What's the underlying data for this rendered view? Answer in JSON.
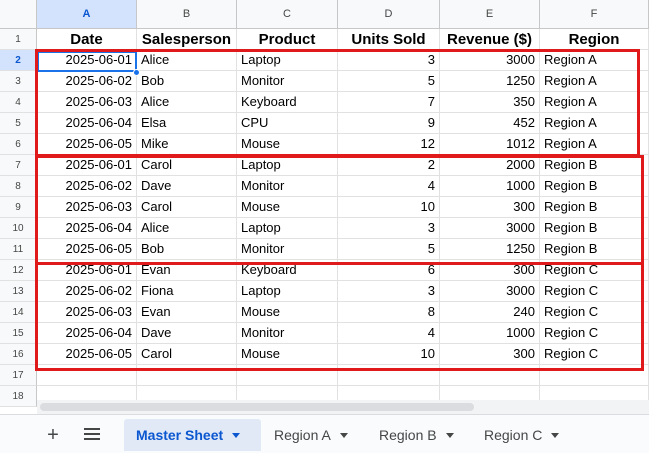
{
  "sheet": {
    "columns": [
      "A",
      "B",
      "C",
      "D",
      "E",
      "F"
    ],
    "selected_column": "A",
    "selected_row": "2",
    "row_numbers": [
      "1",
      "2",
      "3",
      "4",
      "5",
      "6",
      "7",
      "8",
      "9",
      "10",
      "11",
      "12",
      "13",
      "14",
      "15",
      "16",
      "17",
      "18"
    ],
    "headers": [
      "Date",
      "Salesperson",
      "Product",
      "Units Sold",
      "Revenue ($)",
      "Region"
    ],
    "rows": [
      [
        "2025-06-01",
        "Alice",
        "Laptop",
        "3",
        "3000",
        "Region A"
      ],
      [
        "2025-06-02",
        "Bob",
        "Monitor",
        "5",
        "1250",
        "Region A"
      ],
      [
        "2025-06-03",
        "Alice",
        "Keyboard",
        "7",
        "350",
        "Region A"
      ],
      [
        "2025-06-04",
        "Elsa",
        "CPU",
        "9",
        "452",
        "Region A"
      ],
      [
        "2025-06-05",
        "Mike",
        "Mouse",
        "12",
        "1012",
        "Region A"
      ],
      [
        "2025-06-01",
        "Carol",
        "Laptop",
        "2",
        "2000",
        "Region B"
      ],
      [
        "2025-06-02",
        "Dave",
        "Monitor",
        "4",
        "1000",
        "Region B"
      ],
      [
        "2025-06-03",
        "Carol",
        "Mouse",
        "10",
        "300",
        "Region B"
      ],
      [
        "2025-06-04",
        "Alice",
        "Laptop",
        "3",
        "3000",
        "Region B"
      ],
      [
        "2025-06-05",
        "Bob",
        "Monitor",
        "5",
        "1250",
        "Region B"
      ],
      [
        "2025-06-01",
        "Evan",
        "Keyboard",
        "6",
        "300",
        "Region C"
      ],
      [
        "2025-06-02",
        "Fiona",
        "Laptop",
        "3",
        "3000",
        "Region C"
      ],
      [
        "2025-06-03",
        "Evan",
        "Mouse",
        "8",
        "240",
        "Region C"
      ],
      [
        "2025-06-04",
        "Dave",
        "Monitor",
        "4",
        "1000",
        "Region C"
      ],
      [
        "2025-06-05",
        "Carol",
        "Mouse",
        "10",
        "300",
        "Region C"
      ]
    ],
    "highlight_color": "#e0191b",
    "selection_color": "#1a73e8"
  },
  "tabbar": {
    "add_icon": "plus-icon",
    "menu_icon": "hamburger-icon",
    "tabs": [
      {
        "label": "Master Sheet",
        "active": true
      },
      {
        "label": "Region A",
        "active": false
      },
      {
        "label": "Region B",
        "active": false
      },
      {
        "label": "Region C",
        "active": false
      }
    ]
  }
}
